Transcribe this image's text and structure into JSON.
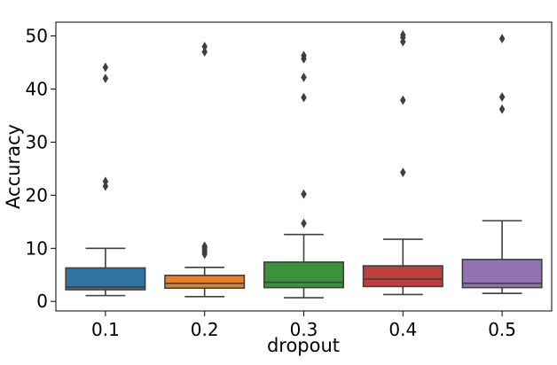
{
  "chart_data": {
    "type": "box",
    "xlabel": "dropout",
    "ylabel": "Accuracy",
    "categories": [
      "0.1",
      "0.2",
      "0.3",
      "0.4",
      "0.5"
    ],
    "colors": [
      "#3274a1",
      "#e1812c",
      "#3a923a",
      "#c03d3e",
      "#9372b2"
    ],
    "ylim": [
      -1.8,
      52.6
    ],
    "yticks": [
      0,
      10,
      20,
      30,
      40,
      50
    ],
    "grid": false,
    "boxes": [
      {
        "category": "0.1",
        "whisker_low": 1.1,
        "q1": 2.2,
        "median": 2.7,
        "q3": 6.3,
        "whisker_high": 10.0,
        "outliers": [
          21.7,
          22.6,
          42.0,
          44.1
        ]
      },
      {
        "category": "0.2",
        "whisker_low": 0.9,
        "q1": 2.5,
        "median": 3.4,
        "q3": 4.9,
        "whisker_high": 6.4,
        "outliers": [
          8.9,
          9.3,
          9.7,
          10.1,
          10.4,
          47.0,
          48.0
        ]
      },
      {
        "category": "0.3",
        "whisker_low": 0.7,
        "q1": 2.6,
        "median": 3.6,
        "q3": 7.4,
        "whisker_high": 12.6,
        "outliers": [
          14.7,
          20.2,
          38.4,
          42.2,
          45.7,
          46.3
        ]
      },
      {
        "category": "0.4",
        "whisker_low": 1.3,
        "q1": 2.8,
        "median": 4.2,
        "q3": 6.7,
        "whisker_high": 11.7,
        "outliers": [
          24.3,
          37.9,
          48.9,
          49.7,
          50.2
        ]
      },
      {
        "category": "0.5",
        "whisker_low": 1.5,
        "q1": 2.6,
        "median": 3.4,
        "q3": 7.9,
        "whisker_high": 15.2,
        "outliers": [
          36.2,
          38.5,
          49.5
        ]
      }
    ]
  }
}
